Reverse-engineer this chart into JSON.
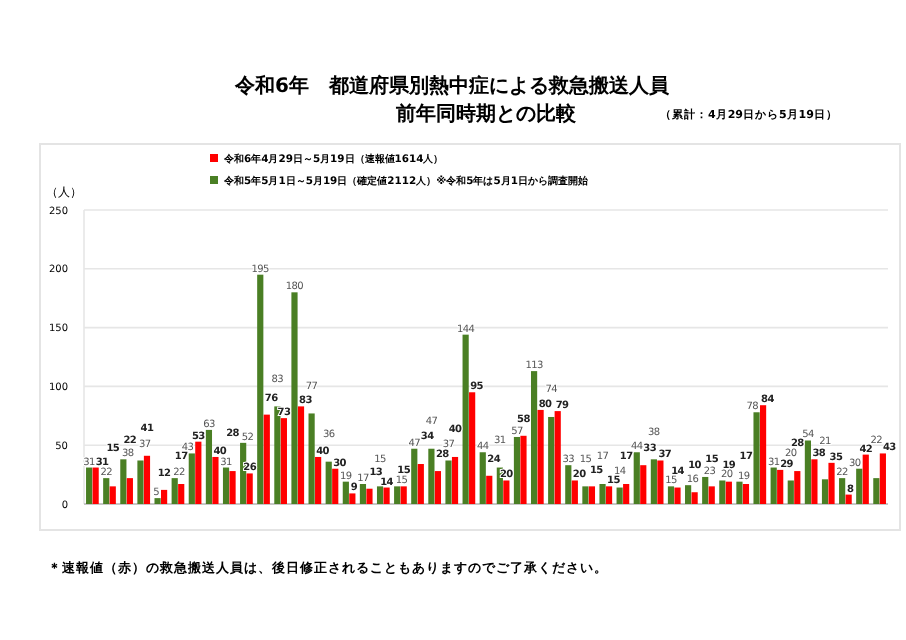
{
  "chart_data": {
    "type": "bar",
    "title": "令和6年　都道府県別熱中症による救急搬送人員",
    "subtitle": "前年同時期との比較",
    "annotations": [
      "（累計：4月29日から5月19日）",
      "＊速報値（赤）の救急搬送人員は、後日修正されることもありますのでご了承ください。"
    ],
    "ylabel": "（人）",
    "categories": [
      null,
      null,
      null,
      null,
      null,
      null,
      null,
      null,
      null,
      null,
      null,
      null,
      null,
      null,
      null,
      null,
      null,
      null,
      null,
      null,
      null,
      null,
      null,
      null,
      null,
      null,
      null,
      null,
      null,
      null,
      null,
      null,
      null,
      null,
      null,
      null,
      null,
      null,
      null,
      null,
      null,
      null,
      null,
      null,
      null,
      null,
      null
    ],
    "series": [
      {
        "name": "令和5年5月1日～5月19日（確定値2112人）※令和5年は5月1日から調査開始",
        "color": "#4a7f24",
        "values": [
          31,
          22,
          38,
          37,
          5,
          22,
          43,
          63,
          31,
          52,
          195,
          83,
          180,
          77,
          36,
          19,
          17,
          15,
          15,
          47,
          47,
          37,
          144,
          44,
          31,
          57,
          113,
          74,
          33,
          15,
          17,
          14,
          44,
          38,
          15,
          16,
          23,
          20,
          19,
          78,
          31,
          20,
          54,
          21,
          22,
          30,
          22
        ]
      },
      {
        "name": "令和6年4月29日～5月19日（速報値1614人）",
        "color": "#ff0000",
        "values": [
          31,
          15,
          22,
          41,
          12,
          17,
          53,
          40,
          28,
          26,
          76,
          73,
          83,
          40,
          30,
          9,
          13,
          14,
          15,
          34,
          28,
          40,
          95,
          24,
          20,
          58,
          80,
          79,
          20,
          15,
          15,
          17,
          33,
          37,
          14,
          10,
          15,
          19,
          17,
          84,
          29,
          28,
          38,
          35,
          8,
          42,
          43
        ]
      }
    ],
    "ylim": [
      0,
      250
    ],
    "yticks": [
      0,
      50,
      100,
      150,
      200,
      250
    ],
    "grid": "y",
    "legend": "top left",
    "data_labels": true
  }
}
